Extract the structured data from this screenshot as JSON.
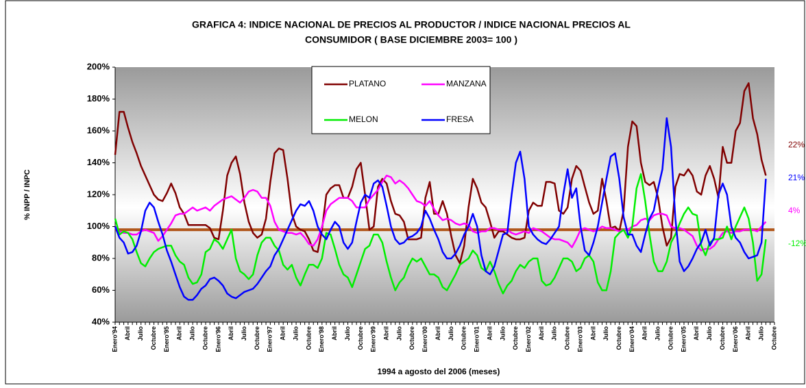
{
  "chart_data": {
    "type": "line",
    "title": [
      "GRAFICA 4: INDICE NACIONAL DE PRECIOS AL PRODUCTOR /  INDICE NACIONAL PRECIOS AL",
      "CONSUMIDOR ( BASE DICIEMBRE 2003= 100 )"
    ],
    "y_label": "% INPP / INPC",
    "x_label": "1994 a agosto del 2006 (meses)",
    "ylim": [
      40,
      200
    ],
    "yticks": [
      {
        "value": 40,
        "label": "40%"
      },
      {
        "value": 60,
        "label": "60%"
      },
      {
        "value": 80,
        "label": "80%"
      },
      {
        "value": 100,
        "label": "100%"
      },
      {
        "value": 120,
        "label": "120%"
      },
      {
        "value": 140,
        "label": "140%"
      },
      {
        "value": 160,
        "label": "160%"
      },
      {
        "value": 180,
        "label": "180%"
      },
      {
        "value": 200,
        "label": "200%"
      }
    ],
    "legend": "top-center",
    "reference_line": {
      "value": 98,
      "color": "#b0561a"
    },
    "categories": [
      "Enero'94",
      null,
      null,
      "Abril",
      null,
      null,
      "Julio",
      null,
      null,
      "Octubre",
      null,
      null,
      "Enero'95",
      null,
      null,
      "Abril",
      null,
      null,
      "Julio",
      null,
      null,
      "Octubre",
      null,
      null,
      "Enero'96",
      null,
      null,
      "Abril",
      null,
      null,
      "Julio",
      null,
      null,
      "Octubre",
      null,
      null,
      "Enero'97",
      null,
      null,
      "Abril",
      null,
      null,
      "Julio",
      null,
      null,
      "Octubre",
      null,
      null,
      "Enero'98",
      null,
      null,
      "Abril",
      null,
      null,
      "Julio",
      null,
      null,
      "Octubre",
      null,
      null,
      "Enero'99",
      null,
      null,
      "Abril",
      null,
      null,
      "Julio",
      null,
      null,
      "Octubre",
      null,
      null,
      "Enero'00",
      null,
      null,
      "Abril",
      null,
      null,
      "Julio",
      null,
      null,
      "Octubre",
      null,
      null,
      "Enero'01",
      null,
      null,
      "Abril",
      null,
      null,
      "Julio",
      null,
      null,
      "Octubre",
      null,
      null,
      "Enero'02",
      null,
      null,
      "Abril",
      null,
      null,
      "Julio",
      null,
      null,
      "Octubre",
      null,
      null,
      "Enero'03",
      null,
      null,
      "Abril",
      null,
      null,
      "Julio",
      null,
      null,
      "Octubre",
      null,
      null,
      "Enero'04",
      null,
      null,
      "Abril",
      null,
      null,
      "Julio",
      null,
      null,
      "Octubre",
      null,
      null,
      "Enero'05",
      null,
      null,
      "Abril",
      null,
      null,
      "Julio",
      null,
      null,
      "Octubre",
      null,
      null,
      "Enero'06",
      null,
      null,
      "Abril",
      null,
      null,
      "Julio",
      null,
      null,
      "Octubre"
    ],
    "series": [
      {
        "name": "PLATANO",
        "color": "#800000",
        "end_label": "22%",
        "values": [
          145,
          172,
          172,
          162,
          153,
          146,
          138,
          132,
          126,
          120,
          117,
          116,
          121,
          127,
          121,
          112,
          108,
          101,
          101,
          101,
          101,
          101,
          99,
          93,
          92,
          110,
          132,
          140,
          144,
          133,
          115,
          103,
          96,
          93,
          95,
          105,
          128,
          146,
          149,
          148,
          130,
          108,
          100,
          98,
          97,
          92,
          85,
          84,
          98,
          120,
          124,
          126,
          126,
          118,
          118,
          125,
          136,
          140,
          120,
          98,
          100,
          125,
          130,
          127,
          116,
          108,
          107,
          103,
          92,
          92,
          92,
          93,
          118,
          128,
          108,
          108,
          116,
          108,
          94,
          82,
          77,
          88,
          112,
          130,
          124,
          115,
          112,
          103,
          93,
          97,
          97,
          95,
          93,
          92,
          92,
          93,
          110,
          115,
          113,
          113,
          128,
          128,
          127,
          110,
          108,
          112,
          130,
          138,
          135,
          125,
          115,
          108,
          110,
          130,
          116,
          99,
          100,
          97,
          110,
          150,
          166,
          163,
          140,
          128,
          126,
          128,
          118,
          100,
          88,
          93,
          125,
          133,
          132,
          136,
          132,
          122,
          120,
          132,
          138,
          130,
          118,
          150,
          140,
          140,
          160,
          165,
          185,
          190,
          168,
          158,
          142,
          132,
          null,
          null
        ]
      },
      {
        "name": "MANZANA",
        "color": "#ff00ff",
        "end_label": "4%",
        "values": [
          100,
          97,
          96,
          96,
          95,
          95,
          97,
          98,
          97,
          96,
          91,
          94,
          98,
          102,
          107,
          108,
          108,
          110,
          112,
          110,
          111,
          112,
          110,
          113,
          115,
          117,
          118,
          119,
          117,
          115,
          118,
          122,
          123,
          122,
          118,
          118,
          113,
          103,
          98,
          97,
          96,
          96,
          95,
          96,
          93,
          89,
          88,
          92,
          100,
          110,
          114,
          116,
          118,
          118,
          118,
          116,
          112,
          112,
          112,
          117,
          120,
          123,
          128,
          132,
          131,
          127,
          129,
          127,
          124,
          120,
          116,
          115,
          113,
          116,
          111,
          107,
          104,
          105,
          104,
          102,
          101,
          102,
          101,
          97,
          96,
          97,
          97,
          99,
          99,
          98,
          98,
          98,
          96,
          95,
          96,
          97,
          96,
          99,
          98,
          97,
          95,
          93,
          92,
          92,
          91,
          90,
          87,
          92,
          98,
          99,
          98,
          97,
          98,
          100,
          99,
          99,
          98,
          97,
          98,
          98,
          100,
          101,
          104,
          105,
          104,
          107,
          108,
          108,
          107,
          100,
          99,
          99,
          98,
          96,
          94,
          88,
          85,
          86,
          86,
          88,
          92,
          96,
          97,
          96,
          97,
          97,
          98,
          98,
          98,
          97,
          100,
          103,
          null,
          null
        ]
      },
      {
        "name": "MELON",
        "color": "#00ee00",
        "end_label": "-12%",
        "values": [
          105,
          95,
          97,
          96,
          92,
          84,
          77,
          75,
          80,
          84,
          86,
          87,
          88,
          88,
          82,
          78,
          76,
          68,
          64,
          65,
          70,
          84,
          86,
          92,
          90,
          86,
          92,
          98,
          80,
          72,
          70,
          67,
          70,
          82,
          90,
          93,
          93,
          88,
          85,
          76,
          73,
          76,
          68,
          63,
          70,
          76,
          76,
          74,
          80,
          96,
          95,
          86,
          76,
          70,
          68,
          62,
          70,
          78,
          86,
          88,
          95,
          95,
          90,
          78,
          68,
          60,
          65,
          68,
          75,
          80,
          78,
          80,
          75,
          70,
          70,
          68,
          62,
          60,
          65,
          70,
          76,
          78,
          80,
          85,
          82,
          74,
          72,
          78,
          72,
          64,
          58,
          63,
          66,
          72,
          76,
          74,
          78,
          80,
          80,
          66,
          63,
          64,
          68,
          74,
          80,
          80,
          78,
          72,
          74,
          80,
          82,
          78,
          65,
          60,
          60,
          72,
          93,
          96,
          98,
          93,
          100,
          124,
          133,
          116,
          95,
          78,
          72,
          72,
          78,
          90,
          95,
          102,
          108,
          112,
          108,
          107,
          88,
          82,
          90,
          92,
          92,
          93,
          100,
          92,
          100,
          106,
          112,
          105,
          90,
          66,
          70,
          92,
          null,
          null
        ]
      },
      {
        "name": "FRESA",
        "color": "#0000ff",
        "end_label": "21%",
        "values": [
          100,
          93,
          90,
          83,
          84,
          88,
          97,
          110,
          115,
          112,
          103,
          95,
          85,
          78,
          70,
          62,
          56,
          54,
          54,
          57,
          61,
          63,
          67,
          68,
          66,
          63,
          58,
          56,
          55,
          57,
          59,
          60,
          61,
          64,
          68,
          72,
          75,
          82,
          86,
          92,
          98,
          104,
          110,
          114,
          113,
          116,
          110,
          100,
          95,
          92,
          98,
          103,
          100,
          90,
          86,
          90,
          103,
          115,
          120,
          118,
          127,
          129,
          125,
          113,
          100,
          92,
          89,
          90,
          93,
          94,
          96,
          100,
          110,
          105,
          98,
          92,
          84,
          80,
          80,
          83,
          88,
          95,
          100,
          108,
          100,
          82,
          72,
          70,
          75,
          85,
          95,
          96,
          120,
          140,
          147,
          130,
          100,
          95,
          92,
          90,
          89,
          92,
          96,
          100,
          120,
          136,
          118,
          124,
          100,
          85,
          82,
          90,
          100,
          115,
          130,
          144,
          146,
          130,
          106,
          95,
          95,
          88,
          84,
          95,
          105,
          110,
          124,
          136,
          168,
          150,
          105,
          78,
          72,
          75,
          80,
          86,
          90,
          98,
          88,
          93,
          120,
          127,
          120,
          100,
          93,
          90,
          84,
          80,
          81,
          82,
          90,
          130,
          null,
          null
        ]
      }
    ]
  }
}
